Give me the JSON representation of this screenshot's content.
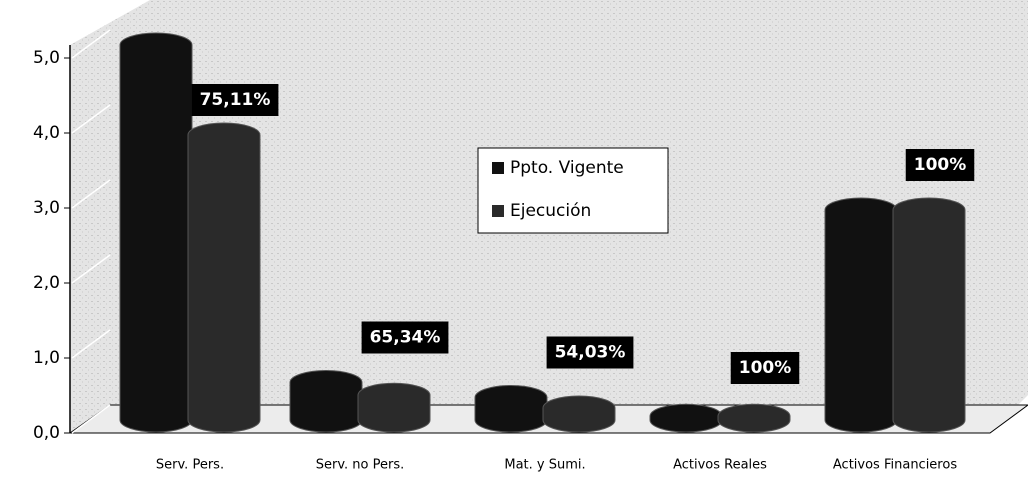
{
  "chart_data": {
    "type": "bar",
    "categories": [
      "Serv. Pers.",
      "Serv. no Pers.",
      "Mat. y Sumi.",
      "Activos Reales",
      "Activos Financieros"
    ],
    "series": [
      {
        "name": "Ppto. Vigente",
        "color": "#111111",
        "values": [
          5.0,
          0.5,
          0.3,
          0.05,
          2.8
        ]
      },
      {
        "name": "Ejecución",
        "color": "#2a2a2a",
        "values": [
          3.8,
          0.33,
          0.16,
          0.05,
          2.8
        ]
      }
    ],
    "annotations": [
      "75,11%",
      "65,34%",
      "54,03%",
      "100%",
      "100%"
    ],
    "ylim": [
      0,
      5
    ],
    "yticks": [
      {
        "value": 0,
        "label": "0,0"
      },
      {
        "value": 1,
        "label": "1,0"
      },
      {
        "value": 2,
        "label": "2,0"
      },
      {
        "value": 3,
        "label": "3,0"
      },
      {
        "value": 4,
        "label": "4,0"
      },
      {
        "value": 5,
        "label": "5,0"
      }
    ],
    "grid": true,
    "legend": "center"
  }
}
